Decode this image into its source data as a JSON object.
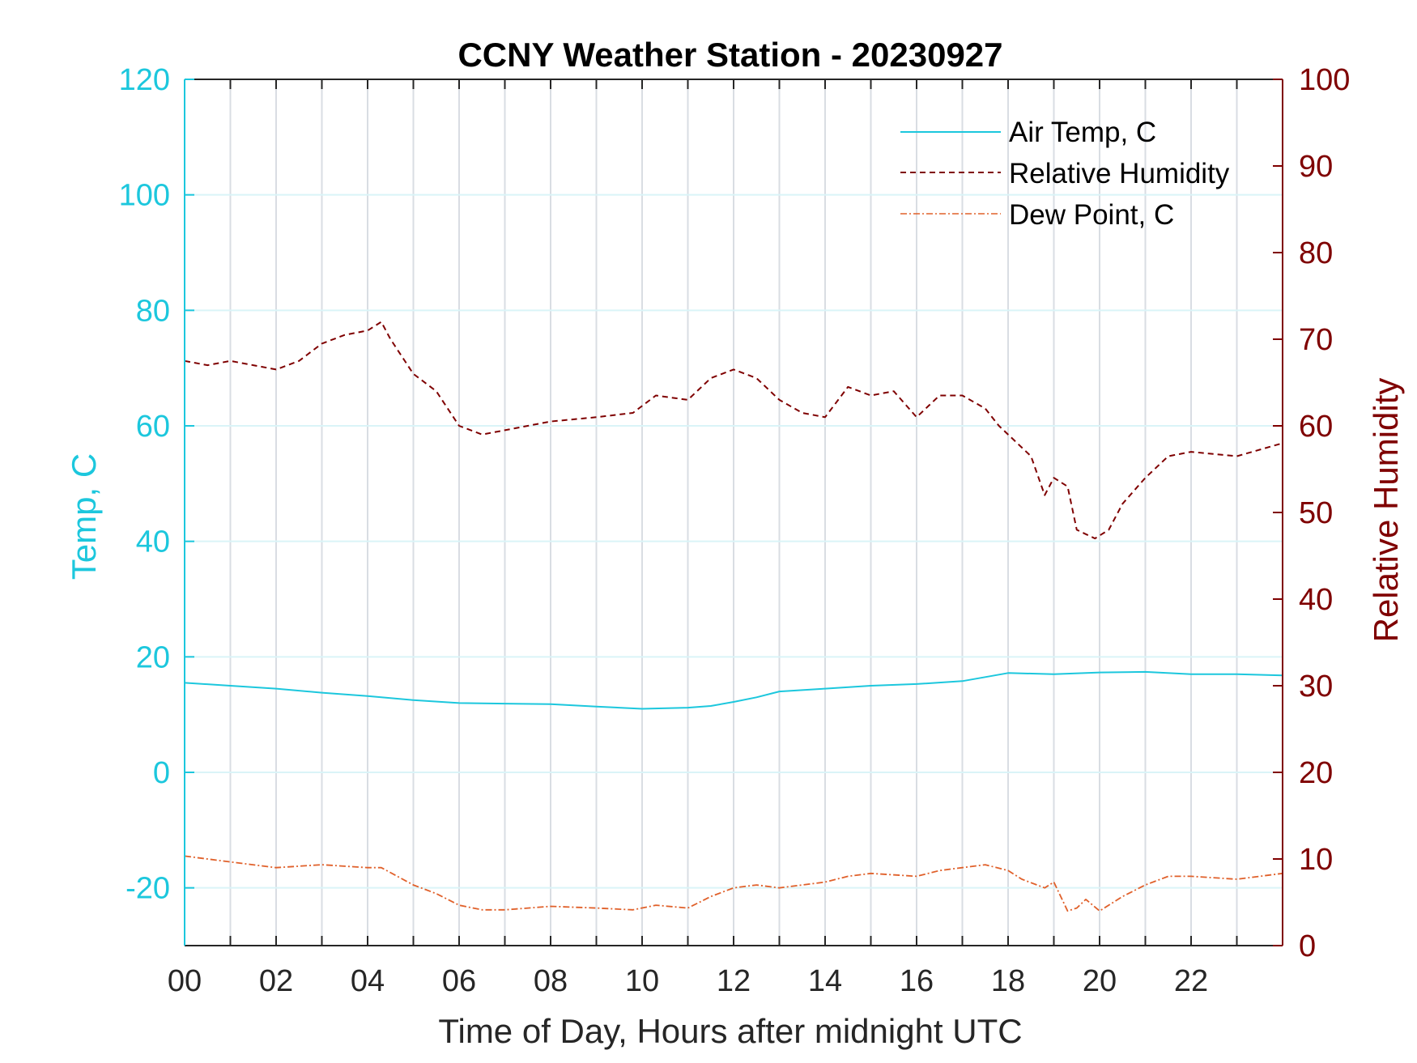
{
  "chart_data": {
    "type": "line",
    "title": "CCNY Weather Station - 20230927",
    "xlabel": "Time of Day, Hours after midnight UTC",
    "ylabel_left": "Temp, C",
    "ylabel_right": "Relative Humidity",
    "xlim": [
      0,
      24
    ],
    "ylim_left": [
      -30,
      120
    ],
    "ylim_right": [
      0,
      100
    ],
    "x_ticks": [
      0,
      2,
      4,
      6,
      8,
      10,
      12,
      14,
      16,
      18,
      20,
      22
    ],
    "x_tick_labels": [
      "00",
      "02",
      "04",
      "06",
      "08",
      "10",
      "12",
      "14",
      "16",
      "18",
      "20",
      "22"
    ],
    "y_left_ticks": [
      -20,
      0,
      20,
      40,
      60,
      80,
      100,
      120
    ],
    "y_right_ticks": [
      0,
      10,
      20,
      30,
      40,
      50,
      60,
      70,
      80,
      90,
      100
    ],
    "grid": true,
    "legend_position": "top-right",
    "colors": {
      "temp": "#1cc7dd",
      "rh": "#7f0000",
      "dew": "#e0602a"
    },
    "series": [
      {
        "name": "Air Temp, C",
        "axis": "left",
        "style": "solid",
        "x": [
          0,
          1,
          2,
          3,
          4,
          5,
          6,
          7,
          8,
          9,
          10,
          11,
          11.5,
          12,
          12.5,
          13,
          14,
          15,
          16,
          17,
          17.5,
          18,
          19,
          20,
          21,
          22,
          23,
          24
        ],
        "y": [
          15.5,
          15.0,
          14.5,
          13.8,
          13.2,
          12.5,
          12.0,
          11.9,
          11.8,
          11.4,
          11.0,
          11.2,
          11.5,
          12.2,
          13.0,
          14.0,
          14.5,
          15.0,
          15.3,
          15.8,
          16.5,
          17.2,
          17.0,
          17.3,
          17.4,
          17.0,
          17.0,
          16.8
        ]
      },
      {
        "name": "Relative Humidity",
        "axis": "right",
        "style": "dashed",
        "x": [
          0,
          0.5,
          1,
          1.5,
          2,
          2.5,
          3,
          3.5,
          4,
          4.3,
          4.5,
          5,
          5.5,
          6,
          6.5,
          7,
          8,
          9,
          9.8,
          10.3,
          11,
          11.5,
          12,
          12.5,
          13,
          13.5,
          14,
          14.5,
          15,
          15.5,
          16,
          16.5,
          17,
          17.5,
          17.8,
          18.2,
          18.5,
          18.8,
          19.0,
          19.3,
          19.5,
          19.7,
          19.9,
          20.2,
          20.5,
          21,
          21.5,
          22,
          23,
          24
        ],
        "y": [
          67.5,
          67.0,
          67.5,
          67.0,
          66.5,
          67.5,
          69.5,
          70.5,
          71.0,
          72.0,
          70.0,
          66.0,
          64.0,
          60.0,
          59.0,
          59.5,
          60.5,
          61.0,
          61.5,
          63.5,
          63.0,
          65.5,
          66.5,
          65.5,
          63.0,
          61.5,
          61.0,
          64.5,
          63.5,
          64.0,
          61.0,
          63.5,
          63.5,
          62.0,
          60.0,
          58.0,
          56.5,
          52.0,
          54.0,
          53.0,
          48.0,
          47.5,
          47.0,
          48.0,
          51.0,
          54.0,
          56.5,
          57.0,
          56.5,
          58.0
        ]
      },
      {
        "name": "Dew Point, C",
        "axis": "left",
        "style": "dash-dot",
        "x": [
          0,
          1,
          2,
          3,
          4,
          4.3,
          5,
          5.5,
          6,
          6.5,
          7,
          8,
          9,
          9.8,
          10.3,
          11,
          11.5,
          12,
          12.5,
          13,
          14,
          14.5,
          15,
          16,
          16.5,
          17,
          17.5,
          18,
          18.3,
          18.8,
          19.0,
          19.3,
          19.5,
          19.7,
          20.0,
          20.5,
          21,
          21.5,
          22,
          23,
          24
        ],
        "y": [
          -14.5,
          -15.5,
          -16.5,
          -16.0,
          -16.5,
          -16.5,
          -19.5,
          -21.0,
          -23.0,
          -23.8,
          -23.8,
          -23.2,
          -23.5,
          -23.8,
          -23.0,
          -23.5,
          -21.5,
          -20.0,
          -19.5,
          -20.0,
          -19.0,
          -18.0,
          -17.5,
          -18.0,
          -17.0,
          -16.5,
          -16.0,
          -17.0,
          -18.5,
          -20.0,
          -19.0,
          -24.0,
          -23.5,
          -22.0,
          -24.0,
          -21.5,
          -19.5,
          -18.0,
          -18.0,
          -18.5,
          -17.5
        ]
      }
    ]
  }
}
